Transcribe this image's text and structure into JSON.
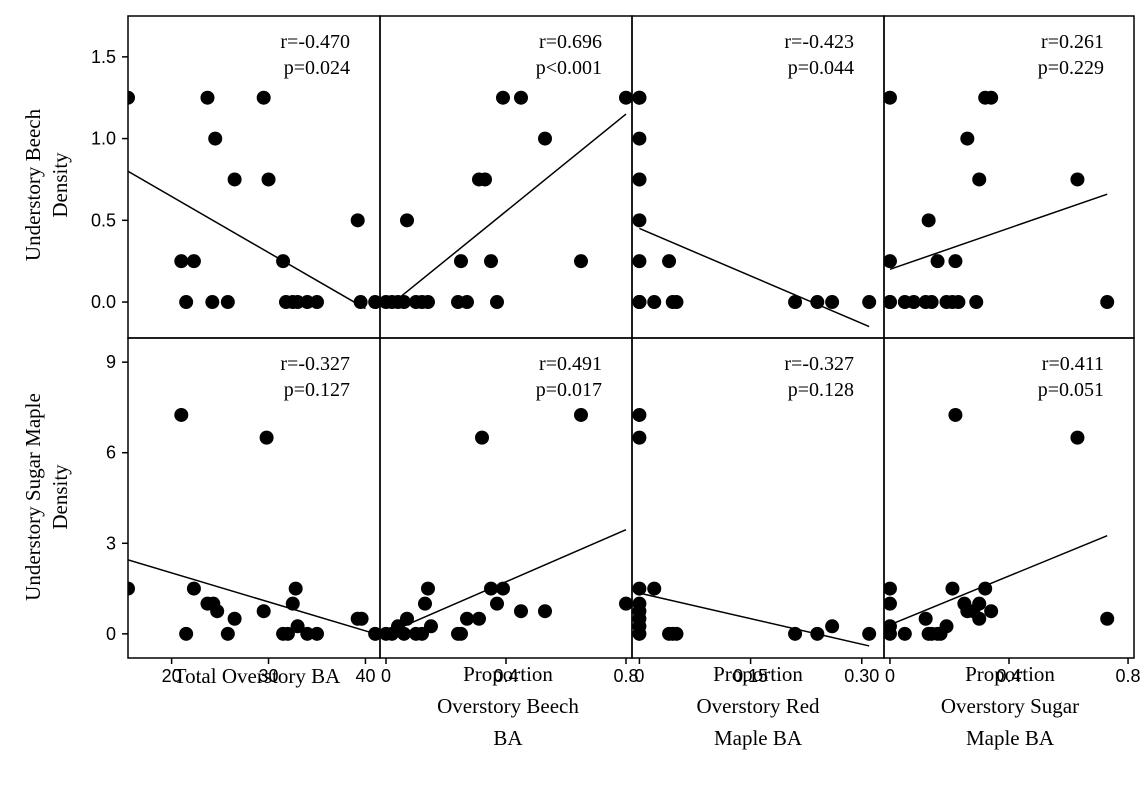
{
  "figure": {
    "column_titles": [
      [
        "Total Overstory BA"
      ],
      [
        "Proportion",
        "Overstory Beech",
        "BA"
      ],
      [
        "Proportion",
        "Overstory Red",
        "Maple BA"
      ],
      [
        "Proportion",
        "Overstory Sugar",
        "Maple BA"
      ]
    ],
    "row_titles": [
      [
        "Understory Beech",
        "Density"
      ],
      [
        "Understory Sugar Maple",
        "Density"
      ]
    ],
    "colors": {
      "points": "#000000",
      "line": "#000000",
      "frame": "#000000",
      "background": "#ffffff"
    }
  },
  "chart_data": {
    "type": "scatter",
    "grid": false,
    "columns": [
      {
        "xlabel": "Total Overstory BA",
        "xlim": [
          15.5,
          41.5
        ],
        "ticks": [
          20,
          30,
          40
        ],
        "tick_labels": [
          "20",
          "30",
          "40"
        ]
      },
      {
        "xlabel": "Proportion Overstory Beech BA",
        "xlim": [
          -0.02,
          0.82
        ],
        "ticks": [
          0,
          0.4,
          0.8
        ],
        "tick_labels": [
          "0",
          "0.4",
          "0.8"
        ]
      },
      {
        "xlabel": "Proportion Overstory Red Maple BA",
        "xlim": [
          -0.01,
          0.33
        ],
        "ticks": [
          0,
          0.15,
          0.3
        ],
        "tick_labels": [
          "0",
          "0.15",
          "0.30"
        ]
      },
      {
        "xlabel": "Proportion Overstory Sugar Maple BA",
        "xlim": [
          -0.02,
          0.82
        ],
        "ticks": [
          0,
          0.4,
          0.8
        ],
        "tick_labels": [
          "0",
          "0.4",
          "0.8"
        ]
      }
    ],
    "rows": [
      {
        "ylabel": "Understory Beech Density",
        "ylim": [
          -0.22,
          1.75
        ],
        "ticks": [
          0,
          0.5,
          1.0,
          1.5
        ],
        "tick_labels": [
          "0.0",
          "0.5",
          "1.0",
          "1.5"
        ]
      },
      {
        "ylabel": "Understory Sugar Maple Density",
        "ylim": [
          -0.8,
          9.8
        ],
        "ticks": [
          0,
          3,
          6,
          9
        ],
        "tick_labels": [
          "0",
          "3",
          "6",
          "9"
        ]
      }
    ],
    "panels": [
      {
        "row": 0,
        "col": 0,
        "r": "r=-0.470",
        "p": "p=0.024",
        "trend": [
          [
            15.5,
            0.8
          ],
          [
            40.0,
            -0.04
          ]
        ],
        "points": [
          [
            15.5,
            1.25
          ],
          [
            21.0,
            0.25
          ],
          [
            21.5,
            0.0
          ],
          [
            22.3,
            0.25
          ],
          [
            23.7,
            1.25
          ],
          [
            24.2,
            0.0
          ],
          [
            24.5,
            1.0
          ],
          [
            25.8,
            0.0
          ],
          [
            26.5,
            0.75
          ],
          [
            29.5,
            1.25
          ],
          [
            30.0,
            0.75
          ],
          [
            31.5,
            0.25
          ],
          [
            31.8,
            0.0
          ],
          [
            32.5,
            0.0
          ],
          [
            33.0,
            0.0
          ],
          [
            34.0,
            0.0
          ],
          [
            35.0,
            0.0
          ],
          [
            39.2,
            0.5
          ],
          [
            39.5,
            0.0
          ],
          [
            41.0,
            0.0
          ]
        ]
      },
      {
        "row": 0,
        "col": 1,
        "r": "r=0.696",
        "p": "p<0.001",
        "trend": [
          [
            0.0,
            -0.04
          ],
          [
            0.8,
            1.15
          ]
        ],
        "points": [
          [
            0.0,
            0.0
          ],
          [
            0.02,
            0.0
          ],
          [
            0.04,
            0.0
          ],
          [
            0.06,
            0.0
          ],
          [
            0.07,
            0.5
          ],
          [
            0.1,
            0.0
          ],
          [
            0.12,
            0.0
          ],
          [
            0.14,
            0.0
          ],
          [
            0.24,
            0.0
          ],
          [
            0.25,
            0.25
          ],
          [
            0.27,
            0.0
          ],
          [
            0.31,
            0.75
          ],
          [
            0.33,
            0.75
          ],
          [
            0.35,
            0.25
          ],
          [
            0.37,
            0.0
          ],
          [
            0.39,
            1.25
          ],
          [
            0.45,
            1.25
          ],
          [
            0.53,
            1.0
          ],
          [
            0.65,
            0.25
          ],
          [
            0.8,
            1.25
          ]
        ]
      },
      {
        "row": 0,
        "col": 2,
        "r": "r=-0.423",
        "p": "p=0.044",
        "trend": [
          [
            0.0,
            0.45
          ],
          [
            0.31,
            -0.15
          ]
        ],
        "points": [
          [
            0.0,
            1.25
          ],
          [
            0.0,
            1.25
          ],
          [
            0.0,
            1.0
          ],
          [
            0.0,
            0.75
          ],
          [
            0.0,
            0.75
          ],
          [
            0.0,
            0.5
          ],
          [
            0.0,
            0.25
          ],
          [
            0.0,
            0.0
          ],
          [
            0.0,
            0.0
          ],
          [
            0.0,
            0.0
          ],
          [
            0.02,
            0.0
          ],
          [
            0.04,
            0.25
          ],
          [
            0.045,
            0.0
          ],
          [
            0.05,
            0.0
          ],
          [
            0.21,
            0.0
          ],
          [
            0.24,
            0.0
          ],
          [
            0.26,
            0.0
          ],
          [
            0.31,
            0.0
          ]
        ]
      },
      {
        "row": 0,
        "col": 3,
        "r": "r=0.261",
        "p": "p=0.229",
        "trend": [
          [
            0.0,
            0.2
          ],
          [
            0.73,
            0.66
          ]
        ],
        "points": [
          [
            0.0,
            1.25
          ],
          [
            0.0,
            0.25
          ],
          [
            0.0,
            0.0
          ],
          [
            0.0,
            0.0
          ],
          [
            0.05,
            0.0
          ],
          [
            0.08,
            0.0
          ],
          [
            0.12,
            0.0
          ],
          [
            0.13,
            0.5
          ],
          [
            0.14,
            0.0
          ],
          [
            0.16,
            0.25
          ],
          [
            0.19,
            0.0
          ],
          [
            0.21,
            0.0
          ],
          [
            0.22,
            0.25
          ],
          [
            0.23,
            0.0
          ],
          [
            0.26,
            1.0
          ],
          [
            0.29,
            0.0
          ],
          [
            0.3,
            0.75
          ],
          [
            0.32,
            1.25
          ],
          [
            0.34,
            1.25
          ],
          [
            0.63,
            0.75
          ],
          [
            0.73,
            0.0
          ]
        ]
      },
      {
        "row": 1,
        "col": 0,
        "r": "r=-0.327",
        "p": "p=0.127",
        "trend": [
          [
            15.5,
            2.45
          ],
          [
            40.5,
            0.05
          ]
        ],
        "points": [
          [
            15.5,
            1.5
          ],
          [
            21.0,
            7.25
          ],
          [
            21.5,
            0.0
          ],
          [
            22.3,
            1.5
          ],
          [
            23.7,
            1.0
          ],
          [
            24.3,
            1.0
          ],
          [
            24.7,
            0.75
          ],
          [
            25.8,
            0.0
          ],
          [
            26.5,
            0.5
          ],
          [
            29.5,
            0.75
          ],
          [
            29.8,
            6.5
          ],
          [
            31.5,
            0.0
          ],
          [
            32.0,
            0.0
          ],
          [
            32.5,
            1.0
          ],
          [
            32.8,
            1.5
          ],
          [
            33.0,
            0.25
          ],
          [
            34.0,
            0.0
          ],
          [
            35.0,
            0.0
          ],
          [
            39.2,
            0.5
          ],
          [
            39.6,
            0.5
          ],
          [
            41.0,
            0.0
          ]
        ]
      },
      {
        "row": 1,
        "col": 1,
        "r": "r=0.491",
        "p": "p=0.017",
        "trend": [
          [
            0.0,
            0.0
          ],
          [
            0.8,
            3.45
          ]
        ],
        "points": [
          [
            0.0,
            0.0
          ],
          [
            0.02,
            0.0
          ],
          [
            0.04,
            0.25
          ],
          [
            0.06,
            0.0
          ],
          [
            0.07,
            0.5
          ],
          [
            0.1,
            0.0
          ],
          [
            0.12,
            0.0
          ],
          [
            0.13,
            1.0
          ],
          [
            0.14,
            1.5
          ],
          [
            0.15,
            0.25
          ],
          [
            0.24,
            0.0
          ],
          [
            0.25,
            0.0
          ],
          [
            0.27,
            0.5
          ],
          [
            0.31,
            0.5
          ],
          [
            0.32,
            6.5
          ],
          [
            0.35,
            1.5
          ],
          [
            0.37,
            1.0
          ],
          [
            0.39,
            1.5
          ],
          [
            0.45,
            0.75
          ],
          [
            0.53,
            0.75
          ],
          [
            0.65,
            7.25
          ],
          [
            0.8,
            1.0
          ]
        ]
      },
      {
        "row": 1,
        "col": 2,
        "r": "r=-0.327",
        "p": "p=0.128",
        "trend": [
          [
            0.0,
            1.35
          ],
          [
            0.31,
            -0.4
          ]
        ],
        "points": [
          [
            0.0,
            7.25
          ],
          [
            0.0,
            6.5
          ],
          [
            0.0,
            1.5
          ],
          [
            0.0,
            1.0
          ],
          [
            0.0,
            0.75
          ],
          [
            0.0,
            0.5
          ],
          [
            0.0,
            0.25
          ],
          [
            0.0,
            0.0
          ],
          [
            0.02,
            1.5
          ],
          [
            0.04,
            0.0
          ],
          [
            0.045,
            0.0
          ],
          [
            0.05,
            0.0
          ],
          [
            0.21,
            0.0
          ],
          [
            0.24,
            0.0
          ],
          [
            0.26,
            0.25
          ],
          [
            0.31,
            0.0
          ]
        ]
      },
      {
        "row": 1,
        "col": 3,
        "r": "r=0.411",
        "p": "p=0.051",
        "trend": [
          [
            0.0,
            0.3
          ],
          [
            0.73,
            3.25
          ]
        ],
        "points": [
          [
            0.0,
            1.5
          ],
          [
            0.0,
            1.0
          ],
          [
            0.0,
            0.25
          ],
          [
            0.0,
            0.0
          ],
          [
            0.05,
            0.0
          ],
          [
            0.12,
            0.5
          ],
          [
            0.13,
            0.0
          ],
          [
            0.14,
            0.0
          ],
          [
            0.16,
            0.0
          ],
          [
            0.17,
            0.0
          ],
          [
            0.19,
            0.25
          ],
          [
            0.21,
            1.5
          ],
          [
            0.22,
            7.25
          ],
          [
            0.25,
            1.0
          ],
          [
            0.26,
            0.75
          ],
          [
            0.28,
            0.75
          ],
          [
            0.3,
            1.0
          ],
          [
            0.3,
            0.5
          ],
          [
            0.32,
            1.5
          ],
          [
            0.34,
            0.75
          ],
          [
            0.63,
            6.5
          ],
          [
            0.73,
            0.5
          ]
        ]
      }
    ]
  }
}
